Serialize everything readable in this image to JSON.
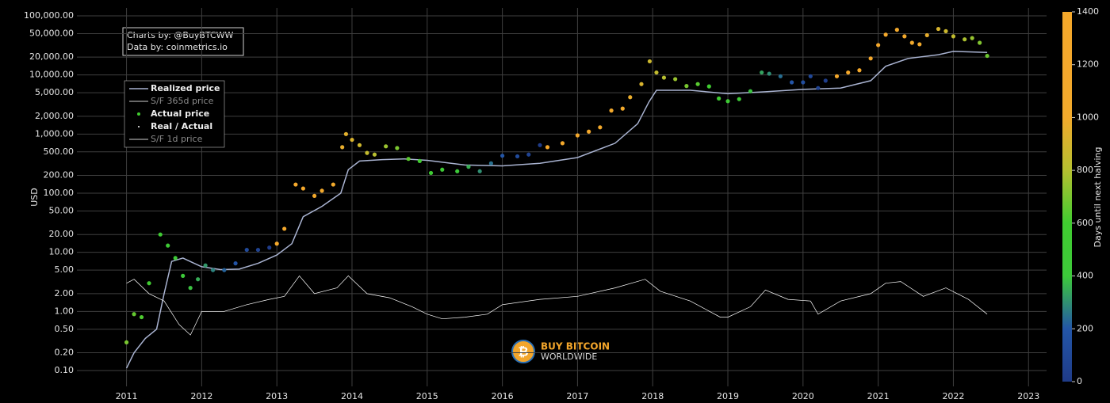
{
  "chart_data": {
    "type": "scatter",
    "y_label": "USD",
    "xlim": [
      2010.34,
      2023.24
    ],
    "xticks": [
      2011,
      2012,
      2013,
      2014,
      2015,
      2016,
      2017,
      2018,
      2019,
      2020,
      2021,
      2022,
      2023
    ],
    "log_y": true,
    "grid": true,
    "ylim": [
      0.054,
      136000
    ],
    "yticks": [
      {
        "value": 0.1,
        "label": "0.10"
      },
      {
        "value": 0.2,
        "label": "0.20"
      },
      {
        "value": 0.5,
        "label": "0.50"
      },
      {
        "value": 1,
        "label": "1.00"
      },
      {
        "value": 2,
        "label": "2.00"
      },
      {
        "value": 5,
        "label": "5.00"
      },
      {
        "value": 10,
        "label": "10.00"
      },
      {
        "value": 20,
        "label": "20.00"
      },
      {
        "value": 50,
        "label": "50.00"
      },
      {
        "value": 100,
        "label": "100.00"
      },
      {
        "value": 200,
        "label": "200.00"
      },
      {
        "value": 500,
        "label": "500.00"
      },
      {
        "value": 1000,
        "label": "1,000.00"
      },
      {
        "value": 2000,
        "label": "2,000.00"
      },
      {
        "value": 5000,
        "label": "5,000.00"
      },
      {
        "value": 10000,
        "label": "10,000.00"
      },
      {
        "value": 20000,
        "label": "20,000.00"
      },
      {
        "value": 50000,
        "label": "50,000.00"
      },
      {
        "value": 100000,
        "label": "100,000.00"
      }
    ],
    "annotations": [
      "Charts by: @BuyBTCWW",
      "Data by: coinmetrics.io"
    ],
    "logo": [
      "BUY BITCOIN",
      "WORLDWIDE"
    ],
    "legend": "upper left",
    "series": [
      {
        "name": "Realized price",
        "type": "line",
        "color": "#a9b3d1",
        "x": [
          2011.0,
          2011.1,
          2011.25,
          2011.4,
          2011.5,
          2011.6,
          2011.75,
          2011.9,
          2012.0,
          2012.25,
          2012.5,
          2012.75,
          2013.0,
          2013.2,
          2013.35,
          2013.6,
          2013.85,
          2013.95,
          2014.1,
          2014.4,
          2014.7,
          2015.0,
          2015.5,
          2016.0,
          2016.5,
          2017.0,
          2017.5,
          2017.8,
          2017.95,
          2018.05,
          2018.5,
          2019.0,
          2019.5,
          2020.0,
          2020.5,
          2020.9,
          2021.1,
          2021.4,
          2021.8,
          2022.0,
          2022.45
        ],
        "values": [
          0.11,
          0.2,
          0.35,
          0.5,
          2,
          7,
          8,
          6.5,
          5.7,
          5.1,
          5.2,
          6.5,
          9,
          14,
          40,
          60,
          100,
          250,
          350,
          370,
          380,
          360,
          300,
          290,
          320,
          400,
          700,
          1500,
          3500,
          5500,
          5500,
          4800,
          5200,
          5700,
          6000,
          8000,
          14000,
          19000,
          22000,
          25000,
          24000
        ]
      },
      {
        "name": "S/F 365d price",
        "visible": false
      },
      {
        "name": "Actual price",
        "type": "scatter",
        "x": [
          2011.0,
          2011.1,
          2011.2,
          2011.3,
          2011.45,
          2011.55,
          2011.65,
          2011.75,
          2011.85,
          2011.95,
          2012.05,
          2012.15,
          2012.3,
          2012.45,
          2012.6,
          2012.75,
          2012.9,
          2013.0,
          2013.1,
          2013.25,
          2013.35,
          2013.5,
          2013.6,
          2013.75,
          2013.87,
          2013.92,
          2014.0,
          2014.1,
          2014.2,
          2014.3,
          2014.45,
          2014.6,
          2014.75,
          2014.9,
          2015.05,
          2015.2,
          2015.4,
          2015.55,
          2015.7,
          2015.85,
          2016.0,
          2016.2,
          2016.35,
          2016.5,
          2016.6,
          2016.8,
          2017.0,
          2017.15,
          2017.3,
          2017.45,
          2017.6,
          2017.7,
          2017.85,
          2017.96,
          2018.05,
          2018.15,
          2018.3,
          2018.45,
          2018.6,
          2018.75,
          2018.88,
          2019.0,
          2019.15,
          2019.3,
          2019.45,
          2019.55,
          2019.7,
          2019.85,
          2020.0,
          2020.1,
          2020.2,
          2020.3,
          2020.45,
          2020.6,
          2020.75,
          2020.9,
          2021.0,
          2021.1,
          2021.25,
          2021.35,
          2021.45,
          2021.55,
          2021.65,
          2021.8,
          2021.9,
          2022.0,
          2022.15,
          2022.25,
          2022.35,
          2022.45
        ],
        "values": [
          0.3,
          0.9,
          0.8,
          3,
          20,
          13,
          8,
          4,
          2.5,
          3.5,
          6,
          5,
          5,
          6.5,
          11,
          11,
          12,
          14,
          25,
          140,
          120,
          90,
          110,
          140,
          600,
          1000,
          800,
          650,
          480,
          450,
          620,
          580,
          380,
          350,
          220,
          250,
          235,
          280,
          235,
          320,
          430,
          420,
          450,
          650,
          600,
          700,
          950,
          1100,
          1300,
          2500,
          2700,
          4200,
          7000,
          17000,
          11000,
          9000,
          8500,
          6500,
          7000,
          6400,
          4000,
          3600,
          3900,
          5300,
          11000,
          10500,
          9500,
          7500,
          7500,
          9500,
          6000,
          8000,
          9500,
          11000,
          12000,
          19000,
          32000,
          48000,
          58000,
          45000,
          35000,
          33000,
          47000,
          60000,
          55000,
          45000,
          40000,
          42000,
          35000,
          21000
        ],
        "color_values": [
          697,
          661,
          624,
          588,
          533,
          496,
          460,
          423,
          387,
          350,
          314,
          277,
          223,
          168,
          113,
          58,
          4,
          1285,
          1248,
          1194,
          1157,
          1102,
          1066,
          1011,
          967,
          949,
          920,
          883,
          847,
          810,
          756,
          701,
          646,
          591,
          537,
          482,
          409,
          354,
          299,
          245,
          190,
          117,
          62,
          7,
          1372,
          1299,
          1226,
          1172,
          1117,
          1062,
          1007,
          971,
          916,
          876,
          843,
          807,
          752,
          697,
          642,
          588,
          541,
          496,
          442,
          387,
          332,
          296,
          241,
          186,
          131,
          95,
          58,
          22,
          1405,
          1351,
          1296,
          1241,
          1205,
          1168,
          1113,
          1077,
          1040,
          1004,
          967,
          913,
          876,
          840,
          785,
          748,
          712,
          676
        ]
      },
      {
        "name": "Real / Actual",
        "type": "line",
        "color": "#ffffff",
        "x": [
          2011.0,
          2011.1,
          2011.3,
          2011.5,
          2011.7,
          2011.85,
          2012.0,
          2012.3,
          2012.6,
          2012.9,
          2013.1,
          2013.3,
          2013.5,
          2013.8,
          2013.95,
          2014.2,
          2014.5,
          2014.8,
          2015.0,
          2015.2,
          2015.5,
          2015.8,
          2016.0,
          2016.5,
          2017.0,
          2017.5,
          2017.9,
          2018.1,
          2018.5,
          2018.9,
          2019.0,
          2019.3,
          2019.5,
          2019.8,
          2020.1,
          2020.2,
          2020.5,
          2020.9,
          2021.1,
          2021.3,
          2021.6,
          2021.9,
          2022.2,
          2022.45
        ],
        "values": [
          3,
          3.5,
          2,
          1.5,
          0.6,
          0.4,
          1,
          1,
          1.3,
          1.6,
          1.8,
          4,
          2,
          2.5,
          4,
          2,
          1.7,
          1.2,
          0.9,
          0.75,
          0.8,
          0.9,
          1.3,
          1.6,
          1.8,
          2.5,
          3.5,
          2.2,
          1.5,
          0.8,
          0.8,
          1.2,
          2.3,
          1.6,
          1.5,
          0.9,
          1.5,
          2.0,
          3.0,
          3.2,
          1.8,
          2.5,
          1.6,
          0.9
        ]
      },
      {
        "name": "S/F 1d price",
        "visible": false
      }
    ],
    "colorbar": {
      "title": "Days until next halving",
      "ylim": [
        0,
        1400
      ],
      "yticks": [
        0,
        200,
        400,
        600,
        800,
        1000,
        1200,
        1400
      ],
      "colorscale": [
        "#1f3b88",
        "#2356a8",
        "#3dc93a",
        "#40cc30",
        "#b5c030",
        "#f2aa2c",
        "#f4a82c",
        "#f5a82a"
      ]
    }
  }
}
